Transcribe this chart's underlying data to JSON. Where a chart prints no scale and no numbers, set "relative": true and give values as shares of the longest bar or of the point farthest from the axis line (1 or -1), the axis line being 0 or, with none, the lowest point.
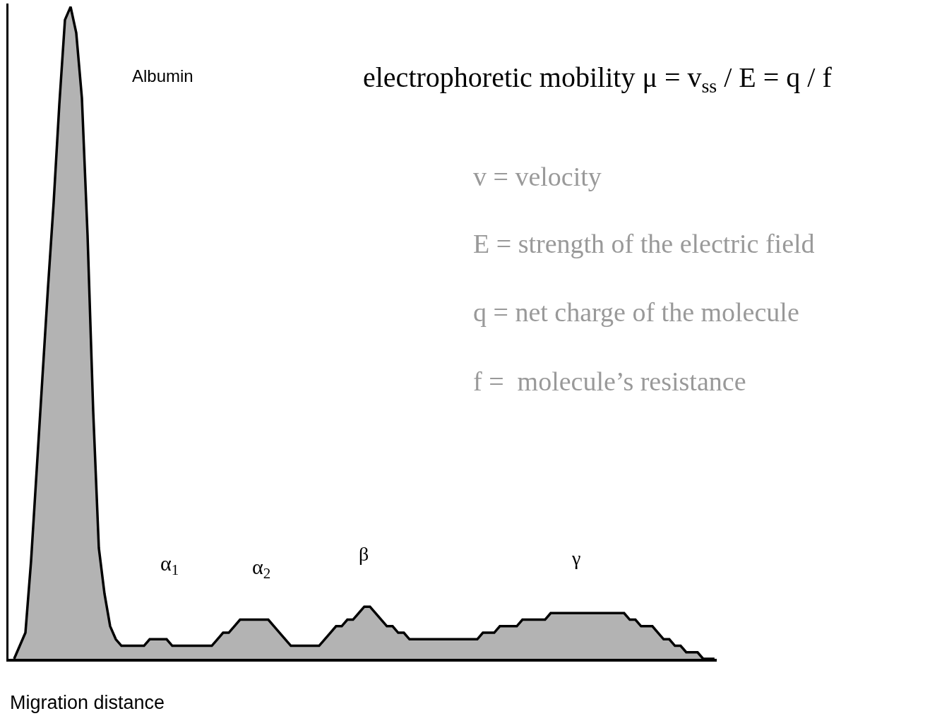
{
  "chart_data": {
    "type": "area",
    "relative": true,
    "xlabel": "Migration distance",
    "categories": [
      null,
      null,
      null,
      null,
      null,
      null,
      null,
      null,
      null,
      null,
      null,
      null,
      null,
      null,
      null,
      null,
      null,
      null,
      null,
      null,
      null,
      null,
      null,
      null,
      null,
      null,
      null,
      null,
      null,
      null,
      null,
      null,
      null,
      null,
      null,
      null,
      null,
      null,
      null,
      null,
      null,
      null,
      null,
      null,
      null,
      null,
      null,
      null,
      null,
      null,
      null,
      null,
      null,
      null,
      null,
      null,
      null,
      null,
      null,
      null,
      null,
      null,
      null,
      null,
      null,
      null,
      null,
      null,
      null,
      null,
      null,
      null,
      null,
      null,
      null,
      null,
      null,
      null,
      null,
      null,
      null,
      null,
      null,
      null,
      null,
      null,
      null,
      null,
      null,
      null,
      null,
      null,
      null,
      null,
      null,
      null,
      null,
      null,
      null,
      null,
      null,
      null,
      null,
      null,
      null,
      null,
      null,
      null,
      null,
      null,
      null,
      null,
      null,
      null,
      null,
      null,
      null,
      null,
      null,
      null,
      null,
      null,
      null,
      null,
      null
    ],
    "series": [
      {
        "color": "#b3b3b3",
        "values": [
          0,
          0.02,
          0.04,
          0.15,
          0.29,
          0.43,
          0.57,
          0.7,
          0.85,
          0.98,
          1,
          0.96,
          0.86,
          0.65,
          0.38,
          0.17,
          0.1,
          0.05,
          0.03,
          0.02,
          0.02,
          0.02,
          0.02,
          0.02,
          0.03,
          0.03,
          0.03,
          0.03,
          0.02,
          0.02,
          0.02,
          0.02,
          0.02,
          0.02,
          0.02,
          0.02,
          0.03,
          0.04,
          0.04,
          0.05,
          0.06,
          0.06,
          0.06,
          0.06,
          0.06,
          0.06,
          0.05,
          0.04,
          0.03,
          0.02,
          0.02,
          0.02,
          0.02,
          0.02,
          0.02,
          0.03,
          0.04,
          0.05,
          0.05,
          0.06,
          0.06,
          0.07,
          0.08,
          0.08,
          0.07,
          0.06,
          0.05,
          0.05,
          0.04,
          0.04,
          0.03,
          0.03,
          0.03,
          0.03,
          0.03,
          0.03,
          0.03,
          0.03,
          0.03,
          0.03,
          0.03,
          0.03,
          0.03,
          0.04,
          0.04,
          0.04,
          0.05,
          0.05,
          0.05,
          0.05,
          0.06,
          0.06,
          0.06,
          0.06,
          0.06,
          0.07,
          0.07,
          0.07,
          0.07,
          0.07,
          0.07,
          0.07,
          0.07,
          0.07,
          0.07,
          0.07,
          0.07,
          0.07,
          0.07,
          0.06,
          0.06,
          0.05,
          0.05,
          0.05,
          0.04,
          0.03,
          0.03,
          0.02,
          0.02,
          0.01,
          0.01,
          0.01,
          0,
          0,
          0
        ]
      }
    ],
    "annotations": [
      "Albumin",
      "α$_{1}$",
      "α$_{2}$",
      "β",
      "γ",
      "electrophoretic mobility μ = v$_{ss}$ / E = q / f",
      "v = velocity",
      "E = strength of the electric field",
      "q = net charge of the molecule",
      "f =  molecule’s resistance"
    ]
  }
}
